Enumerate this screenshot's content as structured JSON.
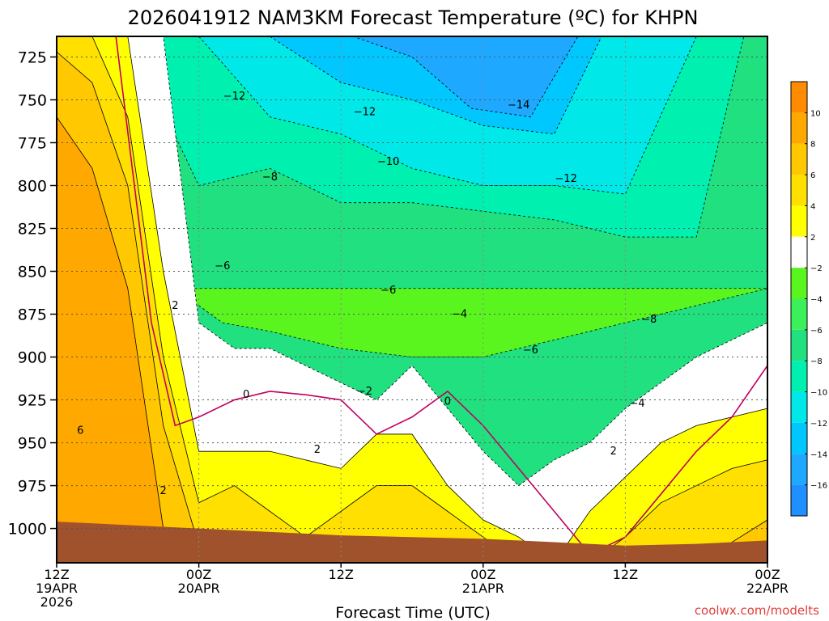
{
  "chart_data": {
    "type": "heatmap",
    "title": "2026041912 NAM3KM Forecast Temperature (ºC) for KHPN",
    "xlabel": "Forecast Time (UTC)",
    "ylabel": "",
    "x_hours": [
      0,
      60
    ],
    "y_range": [
      1020,
      713
    ],
    "yticks": [
      725,
      750,
      775,
      800,
      825,
      850,
      875,
      900,
      925,
      950,
      975,
      1000
    ],
    "ytick_labels": [
      "725",
      "750",
      "775",
      "800",
      "825",
      "850",
      "875",
      "900",
      "925",
      "950",
      "975",
      "1000"
    ],
    "xticks": [
      {
        "hour": 0,
        "line1": "12Z",
        "line2": "19APR",
        "line3": "2026"
      },
      {
        "hour": 12,
        "line1": "00Z",
        "line2": "20APR",
        "line3": ""
      },
      {
        "hour": 24,
        "line1": "12Z",
        "line2": "",
        "line3": ""
      },
      {
        "hour": 36,
        "line1": "00Z",
        "line2": "21APR",
        "line3": ""
      },
      {
        "hour": 48,
        "line1": "12Z",
        "line2": "",
        "line3": ""
      },
      {
        "hour": 60,
        "line1": "00Z",
        "line2": "22APR",
        "line3": ""
      }
    ],
    "colorbar": {
      "bins": [
        {
          "lo": -18,
          "hi": -16,
          "color": "#1e90ff"
        },
        {
          "lo": -16,
          "hi": -14,
          "color": "#1ea8ff"
        },
        {
          "lo": -14,
          "hi": -12,
          "color": "#00c8ff"
        },
        {
          "lo": -12,
          "hi": -10,
          "color": "#00e8e8"
        },
        {
          "lo": -10,
          "hi": -8,
          "color": "#00f0b0"
        },
        {
          "lo": -8,
          "hi": -6,
          "color": "#20e080"
        },
        {
          "lo": -6,
          "hi": -4,
          "color": "#3cf05a"
        },
        {
          "lo": -4,
          "hi": -2,
          "color": "#5af51e"
        },
        {
          "lo": -2,
          "hi": 2,
          "color": "#ffffff"
        },
        {
          "lo": 2,
          "hi": 4,
          "color": "#ffff00"
        },
        {
          "lo": 4,
          "hi": 6,
          "color": "#ffe000"
        },
        {
          "lo": 6,
          "hi": 8,
          "color": "#ffc800"
        },
        {
          "lo": 8,
          "hi": 10,
          "color": "#ffa800"
        },
        {
          "lo": 10,
          "hi": 12,
          "color": "#ff8c00"
        }
      ],
      "tick_labels": [
        "10",
        "8",
        "6",
        "4",
        "2",
        "−2",
        "−4",
        "−6",
        "−8",
        "−10",
        "−12",
        "−14",
        "−16"
      ]
    },
    "temperature_field": {
      "hours": [
        0,
        3,
        6,
        9,
        12,
        15,
        18,
        21,
        24,
        27,
        30,
        33,
        36,
        39,
        42,
        45,
        48,
        51,
        54,
        57,
        60
      ],
      "bands": [
        {
          "value": 8,
          "color": "#ffa800",
          "pressure_top": [
            760,
            790,
            860,
            1000,
            1020,
            1020,
            1020,
            1020,
            1020,
            1020,
            1020,
            1020,
            1020,
            1020,
            1020,
            1020,
            1020,
            1020,
            1020,
            1020,
            1020
          ],
          "pressure_bottom": 1020
        },
        {
          "value": 6,
          "color": "#ffc800",
          "pressure_top": [
            722,
            740,
            800,
            940,
            1010,
            1020,
            1020,
            1020,
            1020,
            1020,
            1020,
            1020,
            1020,
            1020,
            1020,
            1020,
            1020,
            1020,
            1020,
            1008,
            995
          ],
          "pressure_bottom": 1020
        },
        {
          "value": 4,
          "color": "#ffe000",
          "pressure_top": [
            713,
            713,
            760,
            900,
            985,
            975,
            990,
            1005,
            990,
            975,
            975,
            990,
            1005,
            1020,
            1020,
            1020,
            1005,
            985,
            975,
            965,
            960
          ],
          "pressure_bottom": 1020
        },
        {
          "value": 2,
          "color": "#ffff00",
          "pressure_top": [
            713,
            713,
            713,
            850,
            955,
            955,
            955,
            960,
            965,
            945,
            945,
            975,
            995,
            1005,
            1020,
            990,
            970,
            950,
            940,
            935,
            930
          ],
          "pressure_bottom": 1020
        },
        {
          "value": -2,
          "color": "#ffffff",
          "pressure_top": [
            713,
            713,
            713,
            713,
            880,
            895,
            895,
            905,
            915,
            925,
            905,
            930,
            955,
            975,
            960,
            950,
            930,
            915,
            900,
            890,
            880
          ],
          "pressure_bottom": 1020
        }
      ]
    },
    "contour_labels": [
      {
        "hour": 2.0,
        "p": 943,
        "text": "6"
      },
      {
        "hour": 9.0,
        "p": 978,
        "text": "2"
      },
      {
        "hour": 10.0,
        "p": 870,
        "text": "2"
      },
      {
        "hour": 16.0,
        "p": 922,
        "text": "0"
      },
      {
        "hour": 22.0,
        "p": 954,
        "text": "2"
      },
      {
        "hour": 26.0,
        "p": 920,
        "text": "−2"
      },
      {
        "hour": 33.0,
        "p": 926,
        "text": "0"
      },
      {
        "hour": 28.0,
        "p": 861,
        "text": "−6"
      },
      {
        "hour": 34.0,
        "p": 875,
        "text": "−4"
      },
      {
        "hour": 14.0,
        "p": 847,
        "text": "−6"
      },
      {
        "hour": 18.0,
        "p": 795,
        "text": "−8"
      },
      {
        "hour": 15.0,
        "p": 748,
        "text": "−12"
      },
      {
        "hour": 26.0,
        "p": 757,
        "text": "−12"
      },
      {
        "hour": 28.0,
        "p": 786,
        "text": "−10"
      },
      {
        "hour": 39.0,
        "p": 753,
        "text": "−14"
      },
      {
        "hour": 43.0,
        "p": 796,
        "text": "−12"
      },
      {
        "hour": 40.0,
        "p": 896,
        "text": "−6"
      },
      {
        "hour": 50.0,
        "p": 878,
        "text": "−8"
      },
      {
        "hour": 49.0,
        "p": 927,
        "text": "−4"
      },
      {
        "hour": 47.0,
        "p": 955,
        "text": "2"
      }
    ]
  },
  "credit": "coolwx.com/modelts",
  "colors": {
    "frame": "#000000",
    "grid": "#555555",
    "terrain": "#a0522d",
    "zero_line": "#c00060"
  }
}
